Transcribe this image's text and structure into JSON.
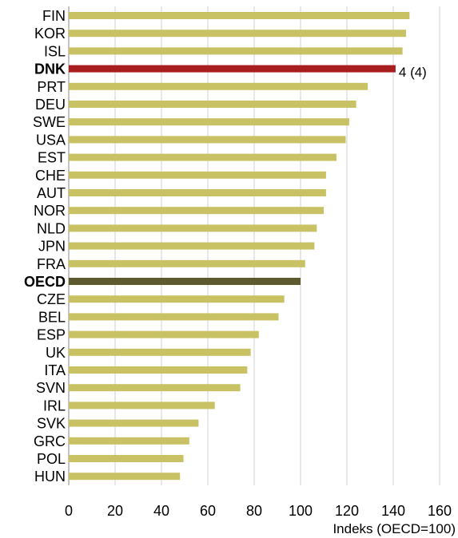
{
  "chart_data": {
    "type": "bar",
    "orientation": "horizontal",
    "categories": [
      "FIN",
      "KOR",
      "ISL",
      "DNK",
      "PRT",
      "DEU",
      "SWE",
      "USA",
      "EST",
      "CHE",
      "AUT",
      "NOR",
      "NLD",
      "JPN",
      "FRA",
      "OECD",
      "CZE",
      "BEL",
      "ESP",
      "UK",
      "ITA",
      "SVN",
      "IRL",
      "SVK",
      "GRC",
      "POL",
      "HUN"
    ],
    "values": [
      147,
      145.5,
      144,
      141,
      129,
      124,
      121,
      119.5,
      115.5,
      111,
      111,
      110,
      107,
      106,
      102,
      100,
      93,
      90.5,
      82,
      78.5,
      77,
      74,
      63,
      56,
      52,
      49.5,
      48
    ],
    "highlighted": {
      "DNK": "#a81d1d",
      "OECD": "#5c5a2e"
    },
    "bar_color": "#c8c264",
    "annotation": {
      "category": "DNK",
      "text": "4 (4)"
    },
    "xlim": [
      0,
      160
    ],
    "xticks": [
      0,
      20,
      40,
      60,
      80,
      100,
      120,
      140,
      160
    ],
    "xlabel": "Indeks (OECD=100)",
    "ylabel": "",
    "title": "",
    "grid": "vertical"
  }
}
